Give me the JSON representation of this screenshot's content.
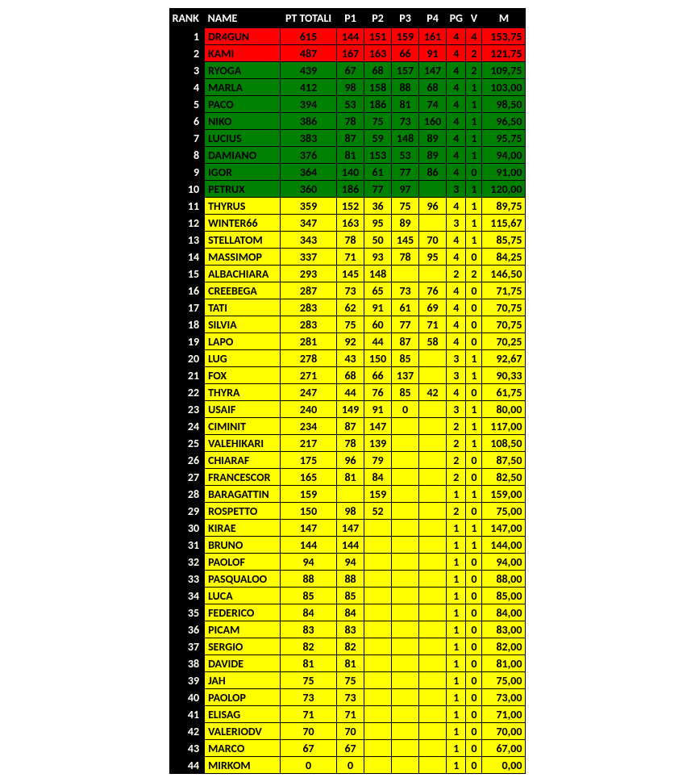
{
  "colors": {
    "header_bg": "#000000",
    "header_fg": "#ffffff",
    "red": "#ff0000",
    "green": "#008000",
    "yellow": "#ffff00",
    "border": "#000000"
  },
  "headers": {
    "rank": "RANK",
    "name": "NAME",
    "pt": "PT TOTALI",
    "p1": "P1",
    "p2": "P2",
    "p3": "P3",
    "p4": "P4",
    "pg": "PG",
    "v": "V",
    "m": "M"
  },
  "rows": [
    {
      "rank": "1",
      "name": "DR4GUN",
      "pt": "615",
      "p1": "144",
      "p2": "151",
      "p3": "159",
      "p4": "161",
      "pg": "4",
      "v": "4",
      "m": "153,75",
      "c": "red"
    },
    {
      "rank": "2",
      "name": "KAMI",
      "pt": "487",
      "p1": "167",
      "p2": "163",
      "p3": "66",
      "p4": "91",
      "pg": "4",
      "v": "2",
      "m": "121,75",
      "c": "red"
    },
    {
      "rank": "3",
      "name": "RYOGA",
      "pt": "439",
      "p1": "67",
      "p2": "68",
      "p3": "157",
      "p4": "147",
      "pg": "4",
      "v": "2",
      "m": "109,75",
      "c": "green"
    },
    {
      "rank": "4",
      "name": "MARLA",
      "pt": "412",
      "p1": "98",
      "p2": "158",
      "p3": "88",
      "p4": "68",
      "pg": "4",
      "v": "1",
      "m": "103,00",
      "c": "green"
    },
    {
      "rank": "5",
      "name": "PACO",
      "pt": "394",
      "p1": "53",
      "p2": "186",
      "p3": "81",
      "p4": "74",
      "pg": "4",
      "v": "1",
      "m": "98,50",
      "c": "green"
    },
    {
      "rank": "6",
      "name": "NIKO",
      "pt": "386",
      "p1": "78",
      "p2": "75",
      "p3": "73",
      "p4": "160",
      "pg": "4",
      "v": "1",
      "m": "96,50",
      "c": "green"
    },
    {
      "rank": "7",
      "name": "LUCIUS",
      "pt": "383",
      "p1": "87",
      "p2": "59",
      "p3": "148",
      "p4": "89",
      "pg": "4",
      "v": "1",
      "m": "95,75",
      "c": "green"
    },
    {
      "rank": "8",
      "name": "DAMIANO",
      "pt": "376",
      "p1": "81",
      "p2": "153",
      "p3": "53",
      "p4": "89",
      "pg": "4",
      "v": "1",
      "m": "94,00",
      "c": "green"
    },
    {
      "rank": "9",
      "name": "IGOR",
      "pt": "364",
      "p1": "140",
      "p2": "61",
      "p3": "77",
      "p4": "86",
      "pg": "4",
      "v": "0",
      "m": "91,00",
      "c": "green"
    },
    {
      "rank": "10",
      "name": "PETRUX",
      "pt": "360",
      "p1": "186",
      "p2": "77",
      "p3": "97",
      "p4": "",
      "pg": "3",
      "v": "1",
      "m": "120,00",
      "c": "green"
    },
    {
      "rank": "11",
      "name": "THYRUS",
      "pt": "359",
      "p1": "152",
      "p2": "36",
      "p3": "75",
      "p4": "96",
      "pg": "4",
      "v": "1",
      "m": "89,75",
      "c": "yellow"
    },
    {
      "rank": "12",
      "name": "WINTER66",
      "pt": "347",
      "p1": "163",
      "p2": "95",
      "p3": "89",
      "p4": "",
      "pg": "3",
      "v": "1",
      "m": "115,67",
      "c": "yellow"
    },
    {
      "rank": "13",
      "name": "STELLATOM",
      "pt": "343",
      "p1": "78",
      "p2": "50",
      "p3": "145",
      "p4": "70",
      "pg": "4",
      "v": "1",
      "m": "85,75",
      "c": "yellow"
    },
    {
      "rank": "14",
      "name": "MASSIMOP",
      "pt": "337",
      "p1": "71",
      "p2": "93",
      "p3": "78",
      "p4": "95",
      "pg": "4",
      "v": "0",
      "m": "84,25",
      "c": "yellow"
    },
    {
      "rank": "15",
      "name": "ALBACHIARA",
      "pt": "293",
      "p1": "145",
      "p2": "148",
      "p3": "",
      "p4": "",
      "pg": "2",
      "v": "2",
      "m": "146,50",
      "c": "yellow"
    },
    {
      "rank": "16",
      "name": "CREEBEGA",
      "pt": "287",
      "p1": "73",
      "p2": "65",
      "p3": "73",
      "p4": "76",
      "pg": "4",
      "v": "0",
      "m": "71,75",
      "c": "yellow"
    },
    {
      "rank": "17",
      "name": "TATI",
      "pt": "283",
      "p1": "62",
      "p2": "91",
      "p3": "61",
      "p4": "69",
      "pg": "4",
      "v": "0",
      "m": "70,75",
      "c": "yellow"
    },
    {
      "rank": "18",
      "name": "SILVIA",
      "pt": "283",
      "p1": "75",
      "p2": "60",
      "p3": "77",
      "p4": "71",
      "pg": "4",
      "v": "0",
      "m": "70,75",
      "c": "yellow"
    },
    {
      "rank": "19",
      "name": "LAPO",
      "pt": "281",
      "p1": "92",
      "p2": "44",
      "p3": "87",
      "p4": "58",
      "pg": "4",
      "v": "0",
      "m": "70,25",
      "c": "yellow"
    },
    {
      "rank": "20",
      "name": "LUG",
      "pt": "278",
      "p1": "43",
      "p2": "150",
      "p3": "85",
      "p4": "",
      "pg": "3",
      "v": "1",
      "m": "92,67",
      "c": "yellow"
    },
    {
      "rank": "21",
      "name": "FOX",
      "pt": "271",
      "p1": "68",
      "p2": "66",
      "p3": "137",
      "p4": "",
      "pg": "3",
      "v": "1",
      "m": "90,33",
      "c": "yellow"
    },
    {
      "rank": "22",
      "name": "THYRA",
      "pt": "247",
      "p1": "44",
      "p2": "76",
      "p3": "85",
      "p4": "42",
      "pg": "4",
      "v": "0",
      "m": "61,75",
      "c": "yellow"
    },
    {
      "rank": "23",
      "name": "USAIF",
      "pt": "240",
      "p1": "149",
      "p2": "91",
      "p3": "0",
      "p4": "",
      "pg": "3",
      "v": "1",
      "m": "80,00",
      "c": "yellow"
    },
    {
      "rank": "24",
      "name": "CIMINIT",
      "pt": "234",
      "p1": "87",
      "p2": "147",
      "p3": "",
      "p4": "",
      "pg": "2",
      "v": "1",
      "m": "117,00",
      "c": "yellow"
    },
    {
      "rank": "25",
      "name": "VALEHIKARI",
      "pt": "217",
      "p1": "78",
      "p2": "139",
      "p3": "",
      "p4": "",
      "pg": "2",
      "v": "1",
      "m": "108,50",
      "c": "yellow"
    },
    {
      "rank": "26",
      "name": "CHIARAF",
      "pt": "175",
      "p1": "96",
      "p2": "79",
      "p3": "",
      "p4": "",
      "pg": "2",
      "v": "0",
      "m": "87,50",
      "c": "yellow"
    },
    {
      "rank": "27",
      "name": "FRANCESCOR",
      "pt": "165",
      "p1": "81",
      "p2": "84",
      "p3": "",
      "p4": "",
      "pg": "2",
      "v": "0",
      "m": "82,50",
      "c": "yellow"
    },
    {
      "rank": "28",
      "name": "BARAGATTIN",
      "pt": "159",
      "p1": "",
      "p2": "159",
      "p3": "",
      "p4": "",
      "pg": "1",
      "v": "1",
      "m": "159,00",
      "c": "yellow"
    },
    {
      "rank": "29",
      "name": "ROSPETTO",
      "pt": "150",
      "p1": "98",
      "p2": "52",
      "p3": "",
      "p4": "",
      "pg": "2",
      "v": "0",
      "m": "75,00",
      "c": "yellow"
    },
    {
      "rank": "30",
      "name": "KIRAE",
      "pt": "147",
      "p1": "147",
      "p2": "",
      "p3": "",
      "p4": "",
      "pg": "1",
      "v": "1",
      "m": "147,00",
      "c": "yellow"
    },
    {
      "rank": "31",
      "name": "BRUNO",
      "pt": "144",
      "p1": "144",
      "p2": "",
      "p3": "",
      "p4": "",
      "pg": "1",
      "v": "1",
      "m": "144,00",
      "c": "yellow"
    },
    {
      "rank": "32",
      "name": "PAOLOF",
      "pt": "94",
      "p1": "94",
      "p2": "",
      "p3": "",
      "p4": "",
      "pg": "1",
      "v": "0",
      "m": "94,00",
      "c": "yellow"
    },
    {
      "rank": "33",
      "name": "PASQUALOO",
      "pt": "88",
      "p1": "88",
      "p2": "",
      "p3": "",
      "p4": "",
      "pg": "1",
      "v": "0",
      "m": "88,00",
      "c": "yellow"
    },
    {
      "rank": "34",
      "name": "LUCA",
      "pt": "85",
      "p1": "85",
      "p2": "",
      "p3": "",
      "p4": "",
      "pg": "1",
      "v": "0",
      "m": "85,00",
      "c": "yellow"
    },
    {
      "rank": "35",
      "name": "FEDERICO",
      "pt": "84",
      "p1": "84",
      "p2": "",
      "p3": "",
      "p4": "",
      "pg": "1",
      "v": "0",
      "m": "84,00",
      "c": "yellow"
    },
    {
      "rank": "36",
      "name": "PICAM",
      "pt": "83",
      "p1": "83",
      "p2": "",
      "p3": "",
      "p4": "",
      "pg": "1",
      "v": "0",
      "m": "83,00",
      "c": "yellow"
    },
    {
      "rank": "37",
      "name": "SERGIO",
      "pt": "82",
      "p1": "82",
      "p2": "",
      "p3": "",
      "p4": "",
      "pg": "1",
      "v": "0",
      "m": "82,00",
      "c": "yellow"
    },
    {
      "rank": "38",
      "name": "DAVIDE",
      "pt": "81",
      "p1": "81",
      "p2": "",
      "p3": "",
      "p4": "",
      "pg": "1",
      "v": "0",
      "m": "81,00",
      "c": "yellow"
    },
    {
      "rank": "39",
      "name": "JAH",
      "pt": "75",
      "p1": "75",
      "p2": "",
      "p3": "",
      "p4": "",
      "pg": "1",
      "v": "0",
      "m": "75,00",
      "c": "yellow"
    },
    {
      "rank": "40",
      "name": "PAOLOP",
      "pt": "73",
      "p1": "73",
      "p2": "",
      "p3": "",
      "p4": "",
      "pg": "1",
      "v": "0",
      "m": "73,00",
      "c": "yellow"
    },
    {
      "rank": "41",
      "name": "ELISAG",
      "pt": "71",
      "p1": "71",
      "p2": "",
      "p3": "",
      "p4": "",
      "pg": "1",
      "v": "0",
      "m": "71,00",
      "c": "yellow"
    },
    {
      "rank": "42",
      "name": "VALERIODV",
      "pt": "70",
      "p1": "70",
      "p2": "",
      "p3": "",
      "p4": "",
      "pg": "1",
      "v": "0",
      "m": "70,00",
      "c": "yellow"
    },
    {
      "rank": "43",
      "name": "MARCO",
      "pt": "67",
      "p1": "67",
      "p2": "",
      "p3": "",
      "p4": "",
      "pg": "1",
      "v": "0",
      "m": "67,00",
      "c": "yellow"
    },
    {
      "rank": "44",
      "name": "MIRKOM",
      "pt": "0",
      "p1": "0",
      "p2": "",
      "p3": "",
      "p4": "",
      "pg": "1",
      "v": "0",
      "m": "0,00",
      "c": "yellow"
    }
  ]
}
